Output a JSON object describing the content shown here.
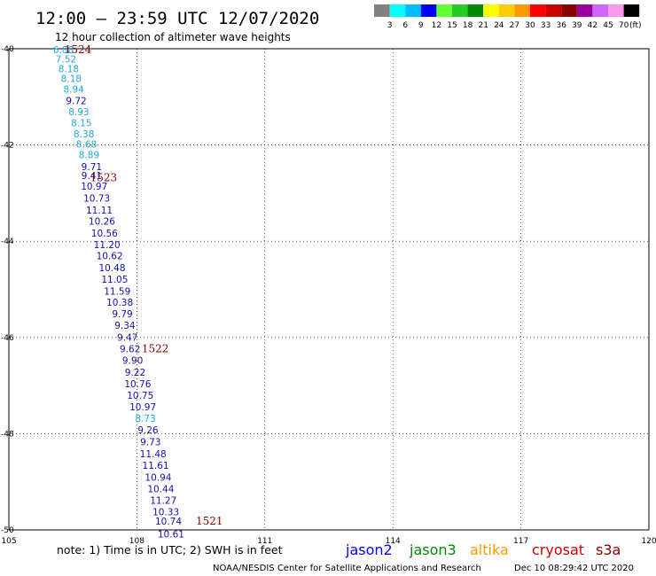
{
  "header": {
    "title": "12:00 – 23:59 UTC 12/07/2020",
    "subtitle": "12 hour collection of altimeter wave heights"
  },
  "legend": {
    "colors": [
      "#808080",
      "#00ffff",
      "#00bfff",
      "#0000ff",
      "#66ff33",
      "#22cc22",
      "#008800",
      "#ffff00",
      "#ffcc00",
      "#ff9900",
      "#ff0000",
      "#cc0000",
      "#880000",
      "#990099",
      "#cc66ff",
      "#ff99ee",
      "#000000"
    ],
    "labels": [
      "3",
      "6",
      "9",
      "12",
      "15",
      "18",
      "21",
      "24",
      "27",
      "30",
      "33",
      "36",
      "39",
      "42",
      "45",
      "70"
    ],
    "unit": "(ft)"
  },
  "footer": {
    "note": "note: 1) Time is in UTC; 2) SWH is in feet",
    "credit": "NOAA/NESDIS Center for Satellite Applications and Research",
    "timestamp": "Dec 10 08:29:42 UTC 2020",
    "satellites": [
      {
        "name": "jason2",
        "color": "#0000ff"
      },
      {
        "name": "jason3",
        "color": "#008800"
      },
      {
        "name": "altika",
        "color": "#ff9900"
      },
      {
        "name": "cryosat",
        "color": "#cc0000"
      },
      {
        "name": "s3a",
        "color": "#880000"
      }
    ]
  },
  "chart_data": {
    "type": "scatter",
    "xlim": [
      105,
      120
    ],
    "ylim": [
      -50,
      -40
    ],
    "x_ticks": [
      105,
      108,
      111,
      114,
      117,
      120
    ],
    "x_tick_labels": [
      "105",
      "108",
      "111",
      "114",
      "117",
      "120"
    ],
    "y_ticks": [
      -40,
      -42,
      -44,
      -46,
      -48,
      -50
    ],
    "y_tick_labels": [
      "-40",
      "-42",
      "-44",
      "-46",
      "-48",
      "-50"
    ],
    "grid": true,
    "points": [
      {
        "x": 106.28,
        "y": -40.02,
        "v": "6.88"
      },
      {
        "x": 106.34,
        "y": -40.21,
        "v": "7.52"
      },
      {
        "x": 106.4,
        "y": -40.41,
        "v": "8.18"
      },
      {
        "x": 106.46,
        "y": -40.62,
        "v": "8.18"
      },
      {
        "x": 106.52,
        "y": -40.84,
        "v": "8.94"
      },
      {
        "x": 106.58,
        "y": -41.08,
        "v": "9.72"
      },
      {
        "x": 106.64,
        "y": -41.31,
        "v": "8.93"
      },
      {
        "x": 106.7,
        "y": -41.54,
        "v": "8.15"
      },
      {
        "x": 106.76,
        "y": -41.77,
        "v": "8.38"
      },
      {
        "x": 106.82,
        "y": -41.98,
        "v": "8.68"
      },
      {
        "x": 106.88,
        "y": -42.2,
        "v": "8.89"
      },
      {
        "x": 106.94,
        "y": -42.45,
        "v": "9.71"
      },
      {
        "x": 106.94,
        "y": -42.63,
        "v": "9.41"
      },
      {
        "x": 107.0,
        "y": -42.85,
        "v": "10.97"
      },
      {
        "x": 107.06,
        "y": -43.1,
        "v": "10.73"
      },
      {
        "x": 107.12,
        "y": -43.35,
        "v": "11.11"
      },
      {
        "x": 107.18,
        "y": -43.58,
        "v": "10.26"
      },
      {
        "x": 107.24,
        "y": -43.83,
        "v": "10.56"
      },
      {
        "x": 107.3,
        "y": -44.07,
        "v": "11.20"
      },
      {
        "x": 107.36,
        "y": -44.3,
        "v": "10.62"
      },
      {
        "x": 107.42,
        "y": -44.55,
        "v": "10.48"
      },
      {
        "x": 107.48,
        "y": -44.79,
        "v": "11.05"
      },
      {
        "x": 107.54,
        "y": -45.04,
        "v": "11.59"
      },
      {
        "x": 107.6,
        "y": -45.27,
        "v": "10.38"
      },
      {
        "x": 107.66,
        "y": -45.51,
        "v": "9.79"
      },
      {
        "x": 107.72,
        "y": -45.75,
        "v": "9.34"
      },
      {
        "x": 107.78,
        "y": -45.99,
        "v": "9.47"
      },
      {
        "x": 107.84,
        "y": -46.23,
        "v": "9.62"
      },
      {
        "x": 107.9,
        "y": -46.47,
        "v": "9.90"
      },
      {
        "x": 107.96,
        "y": -46.72,
        "v": "9.22"
      },
      {
        "x": 108.02,
        "y": -46.96,
        "v": "10.76"
      },
      {
        "x": 108.08,
        "y": -47.2,
        "v": "10.75"
      },
      {
        "x": 108.14,
        "y": -47.44,
        "v": "10.97"
      },
      {
        "x": 108.2,
        "y": -47.68,
        "v": "8.73"
      },
      {
        "x": 108.26,
        "y": -47.92,
        "v": "9.26"
      },
      {
        "x": 108.32,
        "y": -48.17,
        "v": "9.73"
      },
      {
        "x": 108.38,
        "y": -48.42,
        "v": "11.48"
      },
      {
        "x": 108.44,
        "y": -48.66,
        "v": "11.61"
      },
      {
        "x": 108.5,
        "y": -48.9,
        "v": "10.94"
      },
      {
        "x": 108.56,
        "y": -49.14,
        "v": "10.44"
      },
      {
        "x": 108.62,
        "y": -49.38,
        "v": "11.27"
      },
      {
        "x": 108.68,
        "y": -49.62,
        "v": "10.33"
      },
      {
        "x": 108.74,
        "y": -49.82,
        "v": "10.74"
      },
      {
        "x": 108.8,
        "y": -50.08,
        "v": "10.61"
      }
    ],
    "time_labels": [
      {
        "x": 106.62,
        "y": -40.02,
        "label": "1524"
      },
      {
        "x": 107.22,
        "y": -42.68,
        "label": "1523"
      },
      {
        "x": 108.43,
        "y": -46.23,
        "label": "1522"
      },
      {
        "x": 109.7,
        "y": -49.82,
        "label": "1521"
      }
    ]
  }
}
